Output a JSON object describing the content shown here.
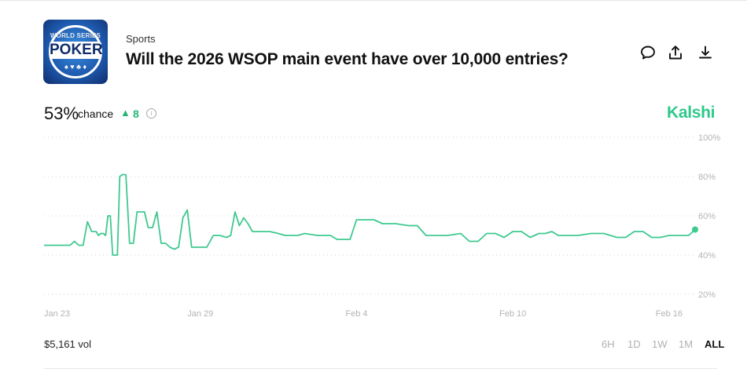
{
  "header": {
    "category": "Sports",
    "title": "Will the 2026 WSOP main event have over 10,000 entries?",
    "logo": {
      "top_text": "WORLD SERIES",
      "main_text": "POKER",
      "suits": "♠ ♥ ♣ ♦"
    }
  },
  "actions": {
    "icons": [
      "comment-icon",
      "share-icon",
      "download-icon"
    ]
  },
  "stats": {
    "chance_value": "53%",
    "chance_word": "chance",
    "change_arrow": "▲",
    "change_value": "8"
  },
  "brand": {
    "name": "Kalshi",
    "color": "#2cc98a"
  },
  "footer": {
    "volume": "$5,161 vol",
    "ranges": [
      "6H",
      "1D",
      "1W",
      "1M",
      "ALL"
    ],
    "active_range": "ALL"
  },
  "chart_data": {
    "type": "line",
    "y_unit": "%",
    "ylim": [
      20,
      100
    ],
    "yticks": [
      "20%",
      "40%",
      "60%",
      "80%",
      "100%"
    ],
    "xlim": [
      "Jan 23",
      "Feb 17"
    ],
    "xtick_labels": [
      "Jan 23",
      "Jan 29",
      "Feb 4",
      "Feb 10",
      "Feb 16"
    ],
    "grid": true,
    "line_color": "#3ec98f",
    "series": [
      {
        "x": [
          "Jan 23",
          "Jan 23",
          "Jan 24",
          "Jan 24",
          "Jan 24",
          "Jan 24",
          "Jan 24",
          "Jan 24",
          "Jan 25",
          "Jan 25",
          "Jan 25",
          "Jan 25",
          "Jan 25",
          "Jan 25",
          "Jan 25",
          "Jan 25",
          "Jan 25",
          "Jan 25",
          "Jan 25",
          "Jan 26",
          "Jan 26",
          "Jan 26",
          "Jan 26",
          "Jan 26",
          "Jan 26",
          "Jan 26",
          "Jan 27",
          "Jan 27",
          "Jan 27",
          "Jan 27",
          "Jan 27",
          "Jan 27",
          "Jan 28",
          "Jan 28",
          "Jan 28",
          "Jan 28",
          "Jan 28",
          "Jan 28",
          "Jan 29",
          "Jan 29",
          "Jan 29",
          "Jan 29",
          "Jan 30",
          "Jan 30",
          "Jan 30",
          "Jan 30",
          "Jan 30",
          "Jan 30",
          "Jan 31",
          "Jan 31",
          "Jan 31",
          "Feb 1",
          "Feb 1",
          "Feb 1",
          "Feb 1",
          "Feb 2",
          "Feb 2",
          "Feb 3",
          "Feb 3",
          "Feb 3",
          "Feb 3",
          "Feb 4",
          "Feb 4",
          "Feb 4",
          "Feb 5",
          "Feb 5",
          "Feb 6",
          "Feb 6",
          "Feb 6",
          "Feb 7",
          "Feb 7",
          "Feb 8",
          "Feb 8",
          "Feb 8",
          "Feb 9",
          "Feb 9",
          "Feb 9",
          "Feb 10",
          "Feb 10",
          "Feb 10",
          "Feb 11",
          "Feb 11",
          "Feb 11",
          "Feb 11",
          "Feb 12",
          "Feb 12",
          "Feb 13",
          "Feb 13",
          "Feb 14",
          "Feb 14",
          "Feb 14",
          "Feb 15",
          "Feb 15",
          "Feb 15",
          "Feb 16",
          "Feb 16",
          "Feb 16",
          "Feb 16",
          "Feb 17"
        ],
        "values": [
          45,
          45,
          45,
          47,
          45,
          45,
          57,
          52,
          52,
          50,
          51,
          51,
          50,
          60,
          60,
          40,
          40,
          40,
          80,
          81,
          81,
          46,
          46,
          62,
          62,
          62,
          54,
          54,
          62,
          46,
          46,
          44,
          43,
          44,
          59,
          63,
          44,
          44,
          44,
          44,
          50,
          50,
          49,
          50,
          62,
          55,
          59,
          56,
          52,
          52,
          52,
          51,
          50,
          50,
          50,
          51,
          50,
          50,
          48,
          48,
          48,
          58,
          58,
          58,
          56,
          56,
          55,
          55,
          50,
          50,
          50,
          51,
          47,
          47,
          51,
          51,
          49,
          52,
          52,
          49,
          51,
          51,
          52,
          50,
          50,
          50,
          51,
          51,
          49,
          49,
          52,
          52,
          49,
          49,
          50,
          50,
          50,
          50,
          53
        ]
      }
    ]
  }
}
